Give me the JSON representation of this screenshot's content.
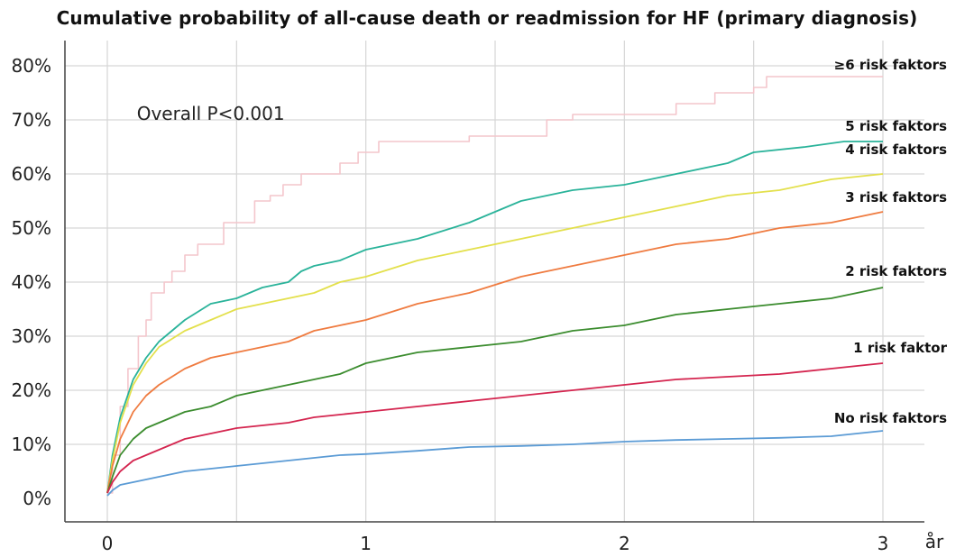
{
  "chart_data": {
    "type": "line",
    "title": "Cumulative probability of all-cause death or readmission for HF (primary diagnosis)",
    "xlabel": "år",
    "ylabel": "",
    "xlim": [
      0,
      3
    ],
    "ylim": [
      0,
      0.8
    ],
    "grid": true,
    "x_ticks": [
      {
        "value": 0,
        "label": "0"
      },
      {
        "value": 1,
        "label": "1"
      },
      {
        "value": 2,
        "label": "2"
      },
      {
        "value": 3,
        "label": "3"
      }
    ],
    "y_ticks": [
      {
        "value": 0,
        "label": "0%"
      },
      {
        "value": 0.1,
        "label": "10%"
      },
      {
        "value": 0.2,
        "label": "20%"
      },
      {
        "value": 0.3,
        "label": "30%"
      },
      {
        "value": 0.4,
        "label": "40%"
      },
      {
        "value": 0.5,
        "label": "50%"
      },
      {
        "value": 0.6,
        "label": "60%"
      },
      {
        "value": 0.7,
        "label": "70%"
      },
      {
        "value": 0.8,
        "label": "80%"
      }
    ],
    "annotations": [
      {
        "text": "Overall P<0.001",
        "x": 0.4,
        "y": 0.7
      }
    ],
    "series": [
      {
        "name": "≥6 risk faktors",
        "color": "#f4c6cc",
        "step": true,
        "points": [
          [
            0,
            0.01
          ],
          [
            0.02,
            0.08
          ],
          [
            0.05,
            0.17
          ],
          [
            0.08,
            0.24
          ],
          [
            0.12,
            0.3
          ],
          [
            0.15,
            0.33
          ],
          [
            0.17,
            0.38
          ],
          [
            0.22,
            0.4
          ],
          [
            0.25,
            0.42
          ],
          [
            0.3,
            0.45
          ],
          [
            0.35,
            0.47
          ],
          [
            0.45,
            0.51
          ],
          [
            0.5,
            0.51
          ],
          [
            0.57,
            0.55
          ],
          [
            0.63,
            0.56
          ],
          [
            0.68,
            0.58
          ],
          [
            0.75,
            0.6
          ],
          [
            0.9,
            0.62
          ],
          [
            0.97,
            0.64
          ],
          [
            1.05,
            0.66
          ],
          [
            1.3,
            0.66
          ],
          [
            1.4,
            0.67
          ],
          [
            1.7,
            0.7
          ],
          [
            1.8,
            0.71
          ],
          [
            2.2,
            0.73
          ],
          [
            2.35,
            0.75
          ],
          [
            2.5,
            0.76
          ],
          [
            2.55,
            0.78
          ],
          [
            3.0,
            0.78
          ]
        ]
      },
      {
        "name": "5 risk faktors",
        "color": "#2ab39a",
        "step": false,
        "points": [
          [
            0,
            0.01
          ],
          [
            0.02,
            0.08
          ],
          [
            0.05,
            0.15
          ],
          [
            0.1,
            0.22
          ],
          [
            0.15,
            0.26
          ],
          [
            0.2,
            0.29
          ],
          [
            0.3,
            0.33
          ],
          [
            0.4,
            0.36
          ],
          [
            0.5,
            0.37
          ],
          [
            0.6,
            0.39
          ],
          [
            0.7,
            0.4
          ],
          [
            0.75,
            0.42
          ],
          [
            0.8,
            0.43
          ],
          [
            0.9,
            0.44
          ],
          [
            1.0,
            0.46
          ],
          [
            1.2,
            0.48
          ],
          [
            1.4,
            0.51
          ],
          [
            1.6,
            0.55
          ],
          [
            1.8,
            0.57
          ],
          [
            2.0,
            0.58
          ],
          [
            2.2,
            0.6
          ],
          [
            2.4,
            0.62
          ],
          [
            2.5,
            0.64
          ],
          [
            2.7,
            0.65
          ],
          [
            2.85,
            0.66
          ],
          [
            3.0,
            0.66
          ]
        ]
      },
      {
        "name": "4 risk faktors",
        "color": "#e3e04c",
        "step": false,
        "points": [
          [
            0,
            0.01
          ],
          [
            0.02,
            0.07
          ],
          [
            0.05,
            0.14
          ],
          [
            0.1,
            0.21
          ],
          [
            0.15,
            0.25
          ],
          [
            0.2,
            0.28
          ],
          [
            0.3,
            0.31
          ],
          [
            0.4,
            0.33
          ],
          [
            0.5,
            0.35
          ],
          [
            0.6,
            0.36
          ],
          [
            0.7,
            0.37
          ],
          [
            0.8,
            0.38
          ],
          [
            0.9,
            0.4
          ],
          [
            1.0,
            0.41
          ],
          [
            1.2,
            0.44
          ],
          [
            1.4,
            0.46
          ],
          [
            1.6,
            0.48
          ],
          [
            1.8,
            0.5
          ],
          [
            2.0,
            0.52
          ],
          [
            2.2,
            0.54
          ],
          [
            2.4,
            0.56
          ],
          [
            2.6,
            0.57
          ],
          [
            2.8,
            0.59
          ],
          [
            3.0,
            0.6
          ]
        ]
      },
      {
        "name": "3 risk faktors",
        "color": "#ef7b40",
        "step": false,
        "points": [
          [
            0,
            0.01
          ],
          [
            0.02,
            0.06
          ],
          [
            0.05,
            0.11
          ],
          [
            0.1,
            0.16
          ],
          [
            0.15,
            0.19
          ],
          [
            0.2,
            0.21
          ],
          [
            0.3,
            0.24
          ],
          [
            0.4,
            0.26
          ],
          [
            0.5,
            0.27
          ],
          [
            0.6,
            0.28
          ],
          [
            0.7,
            0.29
          ],
          [
            0.8,
            0.31
          ],
          [
            0.9,
            0.32
          ],
          [
            1.0,
            0.33
          ],
          [
            1.2,
            0.36
          ],
          [
            1.4,
            0.38
          ],
          [
            1.6,
            0.41
          ],
          [
            1.8,
            0.43
          ],
          [
            2.0,
            0.45
          ],
          [
            2.2,
            0.47
          ],
          [
            2.4,
            0.48
          ],
          [
            2.6,
            0.5
          ],
          [
            2.8,
            0.51
          ],
          [
            3.0,
            0.53
          ]
        ]
      },
      {
        "name": "2 risk faktors",
        "color": "#3b8c2e",
        "step": false,
        "points": [
          [
            0,
            0.01
          ],
          [
            0.02,
            0.04
          ],
          [
            0.05,
            0.08
          ],
          [
            0.1,
            0.11
          ],
          [
            0.15,
            0.13
          ],
          [
            0.2,
            0.14
          ],
          [
            0.3,
            0.16
          ],
          [
            0.4,
            0.17
          ],
          [
            0.5,
            0.19
          ],
          [
            0.6,
            0.2
          ],
          [
            0.7,
            0.21
          ],
          [
            0.8,
            0.22
          ],
          [
            0.9,
            0.23
          ],
          [
            1.0,
            0.25
          ],
          [
            1.2,
            0.27
          ],
          [
            1.4,
            0.28
          ],
          [
            1.6,
            0.29
          ],
          [
            1.8,
            0.31
          ],
          [
            2.0,
            0.32
          ],
          [
            2.2,
            0.34
          ],
          [
            2.4,
            0.35
          ],
          [
            2.6,
            0.36
          ],
          [
            2.8,
            0.37
          ],
          [
            3.0,
            0.39
          ]
        ]
      },
      {
        "name": "1 risk faktor",
        "color": "#d4254f",
        "step": false,
        "points": [
          [
            0,
            0.01
          ],
          [
            0.02,
            0.03
          ],
          [
            0.05,
            0.05
          ],
          [
            0.1,
            0.07
          ],
          [
            0.15,
            0.08
          ],
          [
            0.2,
            0.09
          ],
          [
            0.3,
            0.11
          ],
          [
            0.4,
            0.12
          ],
          [
            0.5,
            0.13
          ],
          [
            0.6,
            0.135
          ],
          [
            0.7,
            0.14
          ],
          [
            0.8,
            0.15
          ],
          [
            0.9,
            0.155
          ],
          [
            1.0,
            0.16
          ],
          [
            1.2,
            0.17
          ],
          [
            1.4,
            0.18
          ],
          [
            1.6,
            0.19
          ],
          [
            1.8,
            0.2
          ],
          [
            2.0,
            0.21
          ],
          [
            2.2,
            0.22
          ],
          [
            2.4,
            0.225
          ],
          [
            2.6,
            0.23
          ],
          [
            2.8,
            0.24
          ],
          [
            3.0,
            0.25
          ]
        ]
      },
      {
        "name": "No risk faktors",
        "color": "#5b9bd5",
        "step": false,
        "points": [
          [
            0,
            0.005
          ],
          [
            0.02,
            0.015
          ],
          [
            0.05,
            0.025
          ],
          [
            0.1,
            0.03
          ],
          [
            0.2,
            0.04
          ],
          [
            0.3,
            0.05
          ],
          [
            0.4,
            0.055
          ],
          [
            0.5,
            0.06
          ],
          [
            0.6,
            0.065
          ],
          [
            0.7,
            0.07
          ],
          [
            0.8,
            0.075
          ],
          [
            0.9,
            0.08
          ],
          [
            1.0,
            0.082
          ],
          [
            1.2,
            0.088
          ],
          [
            1.4,
            0.095
          ],
          [
            1.6,
            0.097
          ],
          [
            1.8,
            0.1
          ],
          [
            2.0,
            0.105
          ],
          [
            2.2,
            0.108
          ],
          [
            2.4,
            0.11
          ],
          [
            2.6,
            0.112
          ],
          [
            2.8,
            0.115
          ],
          [
            3.0,
            0.125
          ]
        ]
      }
    ]
  }
}
